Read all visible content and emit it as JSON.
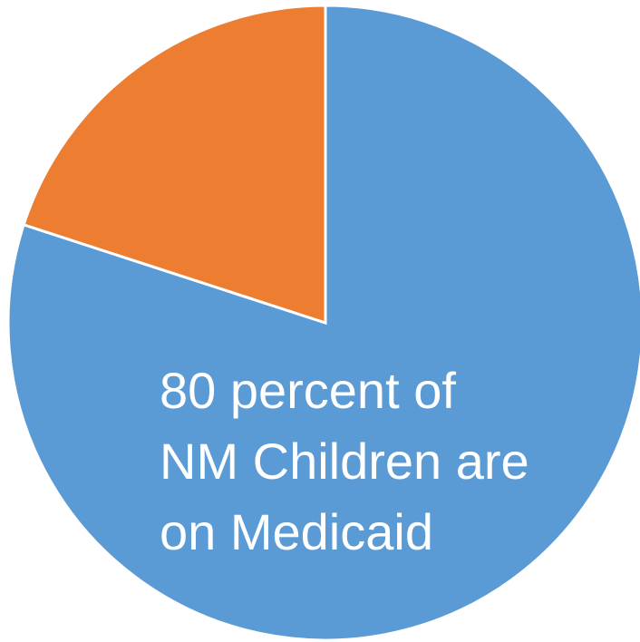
{
  "chart_data": {
    "type": "pie",
    "slices": [
      {
        "value": 80,
        "color": "#5B9BD5"
      },
      {
        "value": 20,
        "color": "#ED7D31"
      }
    ],
    "annotation_lines": [
      "80 percent of",
      "NM Children are",
      "on Medicaid"
    ]
  }
}
